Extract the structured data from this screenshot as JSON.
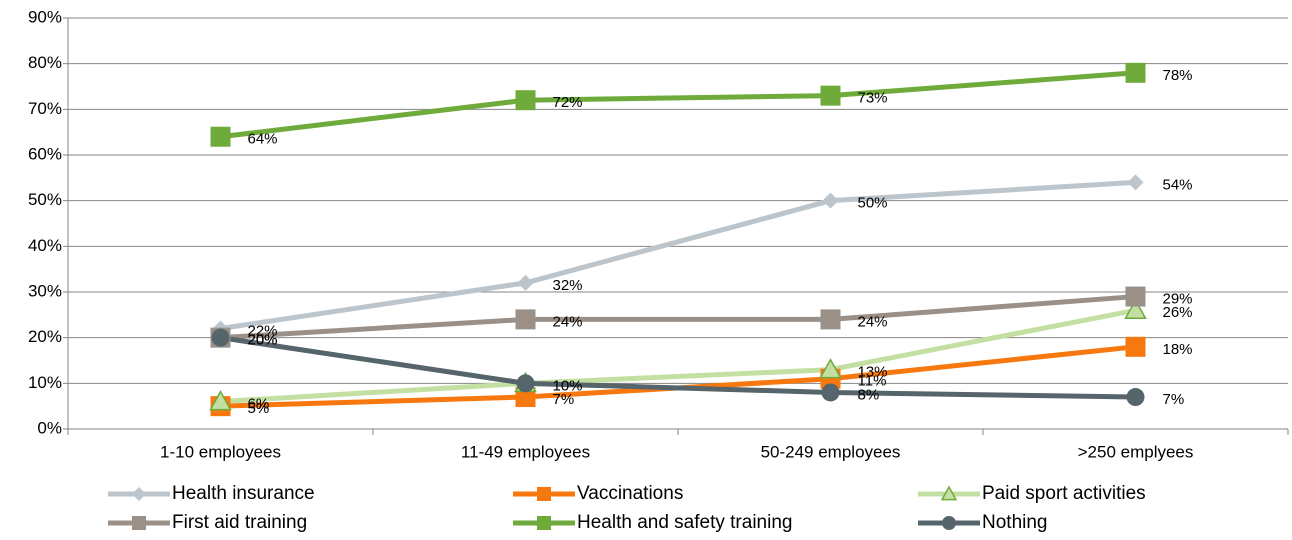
{
  "chart_data": {
    "type": "line",
    "categories": [
      "1-10 employees",
      "11-49 employees",
      "50-249 employees",
      ">250 emplyees"
    ],
    "ylim": [
      0,
      90
    ],
    "yticks": [
      {
        "value": 0,
        "label": "0%"
      },
      {
        "value": 10,
        "label": "10%"
      },
      {
        "value": 20,
        "label": "20%"
      },
      {
        "value": 30,
        "label": "30%"
      },
      {
        "value": 40,
        "label": "40%"
      },
      {
        "value": 50,
        "label": "50%"
      },
      {
        "value": 60,
        "label": "60%"
      },
      {
        "value": 70,
        "label": "70%"
      },
      {
        "value": 80,
        "label": "80%"
      },
      {
        "value": 90,
        "label": "90%"
      }
    ],
    "grid": true,
    "legend": "bottom",
    "series": [
      {
        "name": "Health insurance",
        "color": "#bcc5cb",
        "marker": "diamond",
        "values": [
          22,
          32,
          50,
          54
        ],
        "value_labels": [
          "22%",
          "32%",
          "50%",
          "54%"
        ]
      },
      {
        "name": "Vaccinations",
        "color": "#f7780e",
        "marker": "square",
        "values": [
          5,
          7,
          11,
          18
        ],
        "value_labels": [
          "5%",
          "7%",
          "11%",
          "18%"
        ]
      },
      {
        "name": "Paid sport activities",
        "color": "#c3e0a2",
        "marker": "triangle",
        "values": [
          6,
          10,
          13,
          26
        ],
        "value_labels": [
          "6%",
          null,
          "13%",
          "26%"
        ]
      },
      {
        "name": "First aid training",
        "color": "#9a9087",
        "marker": "square",
        "values": [
          20,
          24,
          24,
          29
        ],
        "value_labels": [
          "20%",
          "24%",
          "24%",
          "29%"
        ]
      },
      {
        "name": "Health and safety training",
        "color": "#6eab3a",
        "marker": "square",
        "values": [
          64,
          72,
          73,
          78
        ],
        "value_labels": [
          "64%",
          "72%",
          "73%",
          "78%"
        ]
      },
      {
        "name": "Nothing",
        "color": "#56646b",
        "marker": "circle",
        "values": [
          20,
          10,
          8,
          7
        ],
        "value_labels": [
          "20%",
          "10%",
          "8%",
          "7%"
        ]
      }
    ]
  }
}
